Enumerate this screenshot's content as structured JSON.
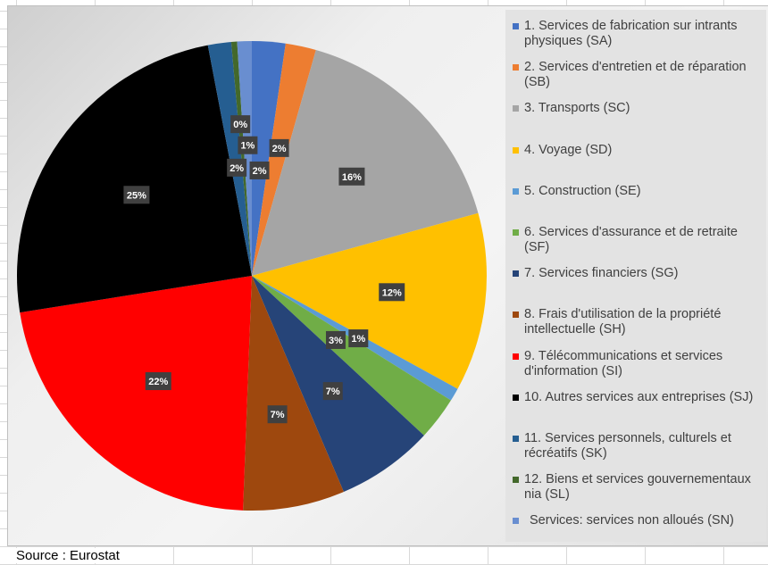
{
  "chart_data": {
    "type": "pie",
    "title": "",
    "categories": [
      "1. Services de fabrication sur intrants physiques  (SA)",
      "2. Services d'entretien et de réparation (SB)",
      "3. Transports (SC)",
      "4. Voyage (SD)",
      "5. Construction (SE)",
      "6. Services d'assurance et de retraite (SF)",
      "7. Services financiers (SG)",
      "8. Frais d'utilisation de la propriété intellectuelle (SH)",
      "9. Télécommunications et services d'information (SI)",
      "10. Autres services aux entreprises (SJ)",
      "11. Services personnels, culturels et récréatifs (SK)",
      "12. Biens et services gouvernementaux nia (SL)",
      "Services: services non alloués (SN)"
    ],
    "values": [
      2.3,
      2.1,
      16.3,
      12.3,
      0.9,
      3.0,
      6.7,
      7.0,
      21.9,
      24.5,
      1.6,
      0.4,
      1.0
    ],
    "data_labels": [
      "2%",
      "2%",
      "16%",
      "12%",
      "1%",
      "3%",
      "7%",
      "7%",
      "22%",
      "25%",
      "2%",
      "0%",
      "1%"
    ],
    "colors": [
      "#4472C4",
      "#ED7D31",
      "#A5A5A5",
      "#FFC000",
      "#5B9BD5",
      "#70AD47",
      "#264478",
      "#9E480E",
      "#FF0000",
      "#000000",
      "#255E91",
      "#43682B",
      "#698ED0"
    ],
    "legend_position": "right"
  },
  "source": "Source : Eurostat"
}
